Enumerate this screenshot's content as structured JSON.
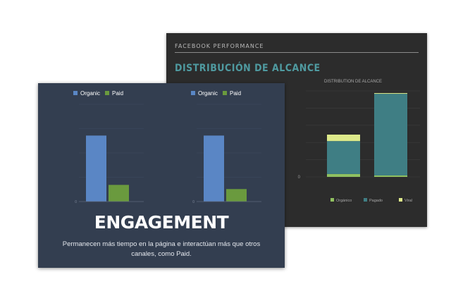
{
  "back_card": {
    "header": "FACEBOOK PERFORMANCE",
    "title": "DISTRIBUCIÓN DE ALCANCE",
    "chart_title": "DISTRIBUTION DE ALCANCE"
  },
  "front_card": {
    "title": "ENGAGEMENT",
    "body": "Permanecen más tiempo en la página e interactúan más que otros canales, como Paid."
  },
  "colors": {
    "organic": "#5a86c5",
    "paid": "#6a9a3e",
    "stack_organico": "#90c060",
    "stack_pagado": "#3f7e84",
    "stack_viral": "#dde98a"
  },
  "chart_data": [
    {
      "type": "bar",
      "legend": [
        "Organic",
        "Paid"
      ],
      "series": [
        {
          "name": "Organic",
          "values": [
            95
          ]
        },
        {
          "name": "Paid",
          "values": [
            24
          ]
        }
      ],
      "ylim": [
        0,
        140
      ],
      "y_ticks": [
        "0",
        "",
        "",
        "",
        ""
      ],
      "legend_position": "top"
    },
    {
      "type": "bar",
      "legend": [
        "Organic",
        "Paid"
      ],
      "series": [
        {
          "name": "Organic",
          "values": [
            95
          ]
        },
        {
          "name": "Paid",
          "values": [
            18
          ]
        }
      ],
      "ylim": [
        0,
        140
      ],
      "y_ticks": [
        "0",
        "",
        "",
        "",
        ""
      ],
      "legend_position": "top"
    },
    {
      "type": "bar",
      "title": "DISTRIBUTION DE ALCANCE",
      "stacked": true,
      "categories": [
        "",
        ""
      ],
      "series": [
        {
          "name": "Orgánico",
          "values": [
            4,
            2
          ]
        },
        {
          "name": "Pagado",
          "values": [
            46,
            114
          ]
        },
        {
          "name": "Viral",
          "values": [
            9,
            1
          ]
        }
      ],
      "ylim": [
        0,
        120
      ],
      "y_ticks": [
        "0",
        "",
        "",
        "",
        "",
        ""
      ],
      "legend_position": "bottom"
    }
  ]
}
